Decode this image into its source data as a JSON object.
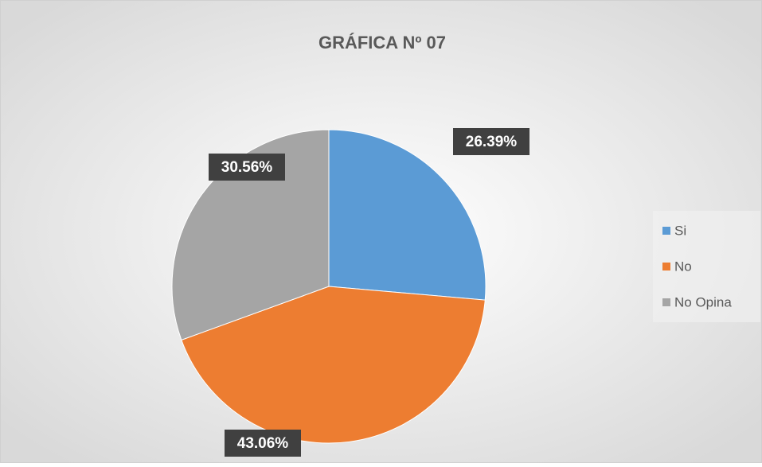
{
  "chart_data": {
    "type": "pie",
    "title": "GRÁFICA Nº 07",
    "categories": [
      "Si",
      "No",
      "No Opina"
    ],
    "values": [
      26.39,
      43.06,
      30.56
    ],
    "value_labels": [
      "26.39%",
      "43.06%",
      "30.56%"
    ],
    "colors": [
      "#5b9bd5",
      "#ed7d31",
      "#a5a5a5"
    ],
    "legend": "right"
  }
}
